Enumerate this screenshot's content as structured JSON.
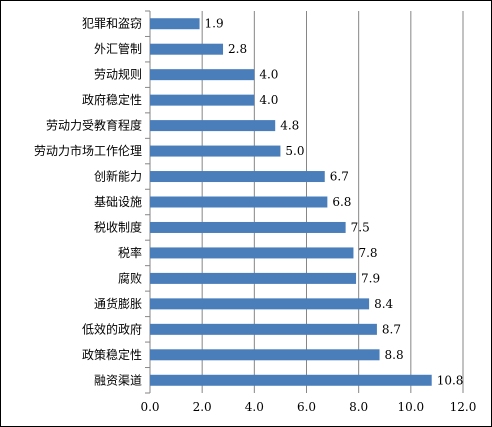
{
  "chart_data": {
    "type": "bar",
    "orientation": "horizontal",
    "categories": [
      "犯罪和盗窃",
      "外汇管制",
      "劳动规则",
      "政府稳定性",
      "劳动力受教育程度",
      "劳动力市场工作伦理",
      "创新能力",
      "基础设施",
      "税收制度",
      "税率",
      "腐败",
      "通货膨胀",
      "低效的政府",
      "政策稳定性",
      "融资渠道"
    ],
    "values": [
      1.9,
      2.8,
      4.0,
      4.0,
      4.8,
      5.0,
      6.7,
      6.8,
      7.5,
      7.8,
      7.9,
      8.4,
      8.7,
      8.8,
      10.8
    ],
    "value_labels": [
      "1.9",
      "2.8",
      "4.0",
      "4.0",
      "4.8",
      "5.0",
      "6.7",
      "6.8",
      "7.5",
      "7.8",
      "7.9",
      "8.4",
      "8.7",
      "8.8",
      "10.8"
    ],
    "xlim": [
      0,
      12
    ],
    "x_ticks": [
      "0.0",
      "2.0",
      "4.0",
      "6.0",
      "8.0",
      "10.0",
      "12.0"
    ],
    "grid": "vertical",
    "legend": "none",
    "bar_color": "#4a7ebb",
    "title": "",
    "xlabel": "",
    "ylabel": ""
  }
}
